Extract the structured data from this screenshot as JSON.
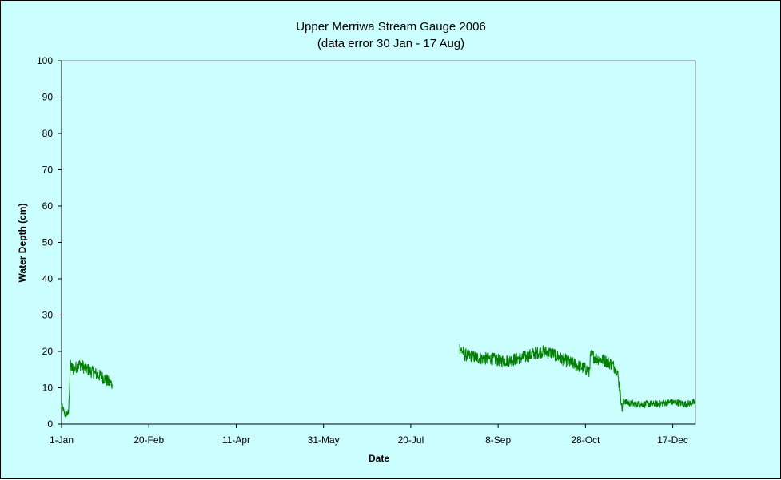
{
  "chart_data": {
    "type": "line",
    "title": "Upper Merriwa Stream Gauge 2006",
    "subtitle": "(data error 30 Jan - 17 Aug)",
    "xlabel": "Date",
    "ylabel": "Water Depth (cm)",
    "ylim": [
      0,
      100
    ],
    "yticks": [
      0,
      10,
      20,
      30,
      40,
      50,
      60,
      70,
      80,
      90,
      100
    ],
    "xlim": [
      "2006-01-01",
      "2006-12-30"
    ],
    "xticks": [
      "1-Jan",
      "20-Feb",
      "11-Apr",
      "31-May",
      "20-Jul",
      "8-Sep",
      "28-Oct",
      "17-Dec"
    ],
    "xtick_dates": [
      "2006-01-01",
      "2006-02-20",
      "2006-04-11",
      "2006-05-31",
      "2006-07-20",
      "2006-09-08",
      "2006-10-28",
      "2006-12-17"
    ],
    "grid": false,
    "legend": "none",
    "series_color": "#008000",
    "segments": [
      {
        "x": [
          "2006-01-01",
          "2006-01-02",
          "2006-01-03",
          "2006-01-04",
          "2006-01-05",
          "2006-01-06",
          "2006-01-07",
          "2006-01-08",
          "2006-01-10",
          "2006-01-12",
          "2006-01-14",
          "2006-01-16",
          "2006-01-18",
          "2006-01-20",
          "2006-01-22",
          "2006-01-24",
          "2006-01-26",
          "2006-01-28",
          "2006-01-30"
        ],
        "y": [
          5,
          4,
          2.5,
          3,
          3,
          16,
          15.5,
          15,
          16,
          16.5,
          15.5,
          15,
          14.5,
          14,
          13.5,
          13,
          12.5,
          11.5,
          11
        ]
      },
      {
        "x": [
          "2006-08-17",
          "2006-08-20",
          "2006-08-25",
          "2006-08-30",
          "2006-09-04",
          "2006-09-09",
          "2006-09-14",
          "2006-09-19",
          "2006-09-24",
          "2006-09-29",
          "2006-10-04",
          "2006-10-09",
          "2006-10-14",
          "2006-10-19",
          "2006-10-24",
          "2006-10-29",
          "2006-10-30",
          "2006-10-31",
          "2006-11-04",
          "2006-11-08",
          "2006-11-12",
          "2006-11-15",
          "2006-11-16",
          "2006-11-17",
          "2006-11-18",
          "2006-11-19",
          "2006-11-20",
          "2006-11-24",
          "2006-11-29",
          "2006-12-04",
          "2006-12-09",
          "2006-12-14",
          "2006-12-19",
          "2006-12-24",
          "2006-12-30"
        ],
        "y": [
          21,
          19,
          18.5,
          18,
          18,
          17.5,
          17.5,
          18,
          18.5,
          19.5,
          20,
          19.5,
          18,
          17,
          16,
          15,
          14,
          19,
          18,
          17.5,
          16.5,
          15,
          12,
          8,
          4,
          7,
          6,
          5.5,
          5.5,
          5.5,
          5.5,
          6,
          6,
          5.5,
          6
        ]
      }
    ]
  }
}
